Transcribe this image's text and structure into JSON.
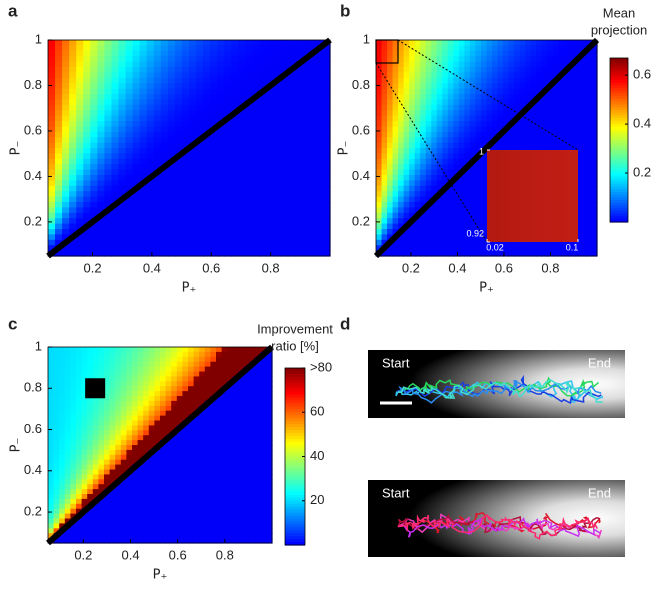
{
  "chart_data": [
    {
      "type": "heatmap",
      "panel": "a",
      "xlabel": "P₊",
      "ylabel": "P₋",
      "xlim": [
        0.05,
        1
      ],
      "ylim": [
        0.05,
        1
      ],
      "xticks": [
        0.2,
        0.4,
        0.6,
        0.8
      ],
      "yticks": [
        0.2,
        0.4,
        0.6,
        0.8,
        1
      ]
    },
    {
      "type": "heatmap",
      "panel": "b",
      "xlabel": "P₊",
      "ylabel": "P₋",
      "xlim": [
        0.05,
        1
      ],
      "ylim": [
        0.05,
        1
      ],
      "xticks": [
        0.2,
        0.4,
        0.6,
        0.8
      ],
      "yticks": [
        0.2,
        0.4,
        0.6,
        0.8,
        1
      ],
      "colorbar_label": [
        "Mean",
        "projection"
      ],
      "clim": [
        0,
        0.67
      ],
      "cticks": [
        0.2,
        0.4,
        0.6
      ],
      "inset": {
        "xlim": [
          0.02,
          0.1
        ],
        "ylim": [
          0.92,
          1
        ],
        "xticks": [
          0.02,
          0.1
        ],
        "yticks": [
          0.92,
          1
        ]
      }
    },
    {
      "type": "heatmap",
      "panel": "c",
      "xlabel": "P₊",
      "ylabel": "P₋",
      "xlim": [
        0.05,
        1
      ],
      "ylim": [
        0.05,
        1
      ],
      "xticks": [
        0.2,
        0.4,
        0.6,
        0.8
      ],
      "yticks": [
        0.2,
        0.4,
        0.6,
        0.8,
        1
      ],
      "colorbar_label": [
        "Improvement",
        "ratio [%]"
      ],
      "clim": [
        0,
        80
      ],
      "cticks": [
        20,
        40,
        60,
        {
          "value": 80,
          "label": ">80"
        }
      ]
    },
    {
      "type": "trajectories",
      "panel": "d",
      "images": [
        {
          "start": "Start",
          "end": "End"
        },
        {
          "start": "Start",
          "end": "End"
        }
      ]
    }
  ]
}
